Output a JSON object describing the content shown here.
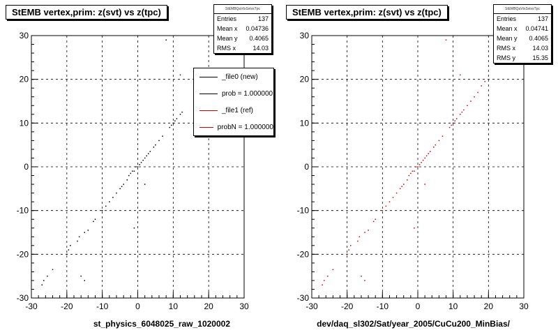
{
  "chart_data": [
    {
      "type": "scatter",
      "title": "StEMB  vertex,prim: z(svt) vs z(tpc)",
      "xlabel": "st_physics_6048025_raw_1020002",
      "ylabel": "",
      "xlim": [
        -30,
        30
      ],
      "ylim": [
        -30,
        30
      ],
      "xticks": [
        "-30",
        "-20",
        "-10",
        "0",
        "10",
        "20",
        "30"
      ],
      "yticks": [
        "-30",
        "-20",
        "-10",
        "0",
        "10",
        "20",
        "30"
      ],
      "grid": true,
      "stats": {
        "name": "StEMBQaVtxSvtvsTpc",
        "rows": [
          {
            "label": "Entries",
            "value": "137"
          },
          {
            "label": "Mean x",
            "value": "0.04736"
          },
          {
            "label": "Mean y",
            "value": "0.4065"
          },
          {
            "label": "RMS x",
            "value": "14.03"
          }
        ]
      },
      "legend": [
        {
          "label": "_file0 (new)",
          "color": "#000000"
        },
        {
          "label": "prob = 1.000000",
          "color": "#000000"
        },
        {
          "label": "_file1 (ref)",
          "color": "#cc0000"
        },
        {
          "label": "probN = 1.000000",
          "color": "#cc0000"
        }
      ],
      "series": [
        {
          "color": "#000000",
          "points": [
            [
              -27,
              -27
            ],
            [
              -26.5,
              -26
            ],
            [
              -25.5,
              -25
            ],
            [
              -24,
              -23.5
            ],
            [
              -20,
              -20
            ],
            [
              -19.5,
              -19
            ],
            [
              -19,
              -18
            ],
            [
              -17,
              -17
            ],
            [
              -16.5,
              -16
            ],
            [
              -16,
              -25
            ],
            [
              -15,
              -26
            ],
            [
              -15,
              -15
            ],
            [
              -14,
              -14.5
            ],
            [
              -12.5,
              -12.5
            ],
            [
              -12,
              -12
            ],
            [
              -10,
              -10
            ],
            [
              -9,
              -9
            ],
            [
              -8,
              -8
            ],
            [
              -7,
              -7
            ],
            [
              -6,
              -6
            ],
            [
              -5,
              -5
            ],
            [
              -4.5,
              -4.5
            ],
            [
              -4,
              -4
            ],
            [
              -3,
              -3
            ],
            [
              -2.5,
              -2
            ],
            [
              -2,
              -1.5
            ],
            [
              -1.5,
              -1
            ],
            [
              -1,
              -1
            ],
            [
              -0.5,
              0
            ],
            [
              0,
              0
            ],
            [
              0.5,
              0.5
            ],
            [
              1,
              1
            ],
            [
              1.5,
              1.5
            ],
            [
              2,
              2
            ],
            [
              2.5,
              2.5
            ],
            [
              3,
              3
            ],
            [
              3.5,
              3.5
            ],
            [
              4.5,
              4.5
            ],
            [
              5,
              5
            ],
            [
              6,
              6
            ],
            [
              7,
              7
            ],
            [
              9,
              9
            ],
            [
              9.5,
              9.5
            ],
            [
              10,
              10
            ],
            [
              10.5,
              10.5
            ],
            [
              11,
              11
            ],
            [
              12,
              12
            ],
            [
              12.5,
              12.5
            ],
            [
              -1,
              -14
            ],
            [
              2,
              -4
            ],
            [
              8,
              29
            ],
            [
              12,
              21
            ]
          ]
        }
      ]
    },
    {
      "type": "scatter",
      "title": "StEMB  vertex,prim: z(svt) vs z(tpc)",
      "xlabel": "dev/daq_sl302/Sat/year_2005/CuCu200_MinBias/",
      "ylabel": "",
      "xlim": [
        -30,
        30
      ],
      "ylim": [
        -30,
        30
      ],
      "xticks": [
        "-30",
        "-20",
        "-10",
        "0",
        "10",
        "20",
        "30"
      ],
      "yticks": [
        "-30",
        "-20",
        "-10",
        "0",
        "10",
        "20",
        "30"
      ],
      "grid": true,
      "stats": {
        "name": "StEMBQaVtxSvtvsTpc",
        "rows": [
          {
            "label": "Entries",
            "value": "137"
          },
          {
            "label": "Mean x",
            "value": "0.04741"
          },
          {
            "label": "Mean y",
            "value": "0.4065"
          },
          {
            "label": "RMS x",
            "value": "14.03"
          },
          {
            "label": "RMS y",
            "value": "15.35"
          }
        ]
      },
      "series": [
        {
          "color": "#cc0000",
          "points": [
            [
              -27,
              -27
            ],
            [
              -26.5,
              -26
            ],
            [
              -25.5,
              -25
            ],
            [
              -24,
              -23.5
            ],
            [
              -20,
              -20
            ],
            [
              -19.5,
              -19
            ],
            [
              -19,
              -18
            ],
            [
              -17,
              -17
            ],
            [
              -16.5,
              -16
            ],
            [
              -16,
              -25
            ],
            [
              -15,
              -26
            ],
            [
              -15,
              -15
            ],
            [
              -14,
              -14.5
            ],
            [
              -12.5,
              -12.5
            ],
            [
              -12,
              -12
            ],
            [
              -10,
              -10
            ],
            [
              -9,
              -9
            ],
            [
              -8,
              -8
            ],
            [
              -7,
              -7
            ],
            [
              -6,
              -6
            ],
            [
              -5,
              -5
            ],
            [
              -4.5,
              -4.5
            ],
            [
              -4,
              -4
            ],
            [
              -3,
              -3
            ],
            [
              -2.5,
              -2
            ],
            [
              -2,
              -1.5
            ],
            [
              -1.5,
              -1
            ],
            [
              -1,
              -1
            ],
            [
              -0.5,
              0
            ],
            [
              0,
              0
            ],
            [
              0.5,
              0.5
            ],
            [
              1,
              1
            ],
            [
              1.5,
              1.5
            ],
            [
              2,
              2
            ],
            [
              2.5,
              2.5
            ],
            [
              3,
              3
            ],
            [
              3.5,
              3.5
            ],
            [
              4.5,
              4.5
            ],
            [
              5,
              5
            ],
            [
              6,
              6
            ],
            [
              7,
              7
            ],
            [
              9,
              9
            ],
            [
              9.5,
              9.5
            ],
            [
              10,
              10
            ],
            [
              10.5,
              10.5
            ],
            [
              11,
              11
            ],
            [
              12,
              12
            ],
            [
              12.5,
              12.5
            ],
            [
              13,
              13
            ],
            [
              14,
              14
            ],
            [
              15,
              15
            ],
            [
              16,
              16
            ],
            [
              17,
              17
            ],
            [
              18,
              18.5
            ],
            [
              19,
              19.5
            ],
            [
              -1,
              -14
            ],
            [
              2,
              -4
            ],
            [
              8,
              29
            ],
            [
              12,
              21
            ]
          ]
        }
      ]
    }
  ]
}
